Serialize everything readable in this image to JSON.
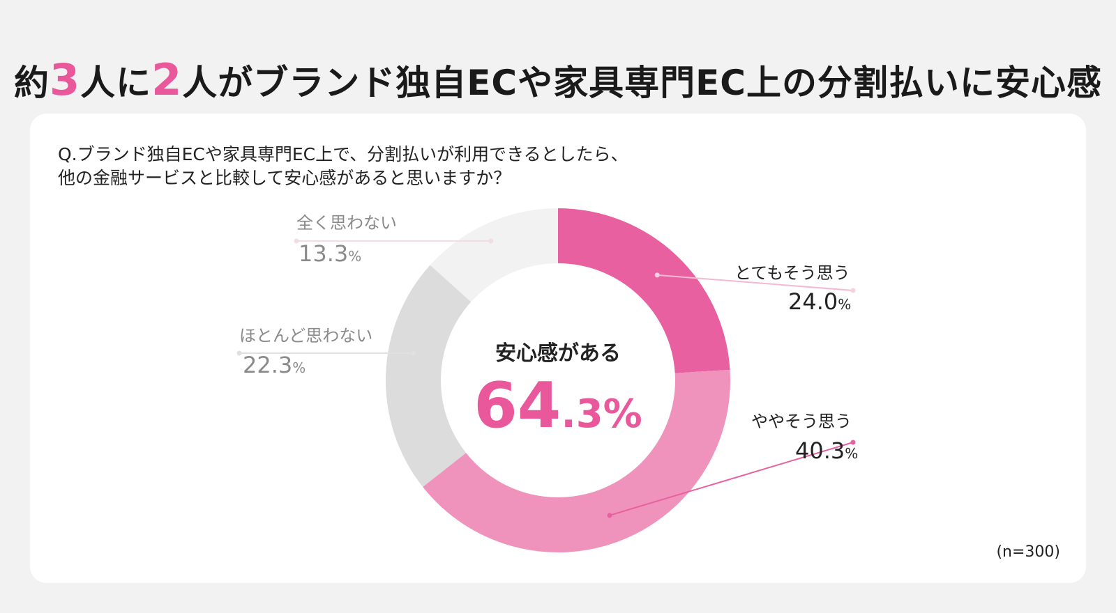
{
  "headline": {
    "part1": "約",
    "num1": "3",
    "part2": "人に",
    "num2": "2",
    "part3": "人",
    "part4": "がブランド独自ECや家具専門EC上の分割払いに安心感"
  },
  "question": {
    "line1": "Q.ブランド独自ECや家具専門EC上で、分割払いが利用できるとしたら、",
    "line2": "他の金融サービスと比較して安心感があると思いますか？"
  },
  "center": {
    "title": "安心感がある",
    "value_int": "64",
    "value_dec": ".3%"
  },
  "note": "(n=300)",
  "chart_data": {
    "type": "pie",
    "donut": true,
    "unit": "%",
    "slices": [
      {
        "label": "とてもそう思う",
        "value": 24.0,
        "value_text": "24.0",
        "color": "#e8609f"
      },
      {
        "label": "ややそう思う",
        "value": 40.3,
        "value_text": "40.3",
        "color": "#ef93bc"
      },
      {
        "label": "ほとんど思わない",
        "value": 22.3,
        "value_text": "22.3",
        "color": "#dcdcdc"
      },
      {
        "label": "全く思わない",
        "value": 13.3,
        "value_text": "13.3",
        "color": "#f2f2f2"
      }
    ]
  }
}
